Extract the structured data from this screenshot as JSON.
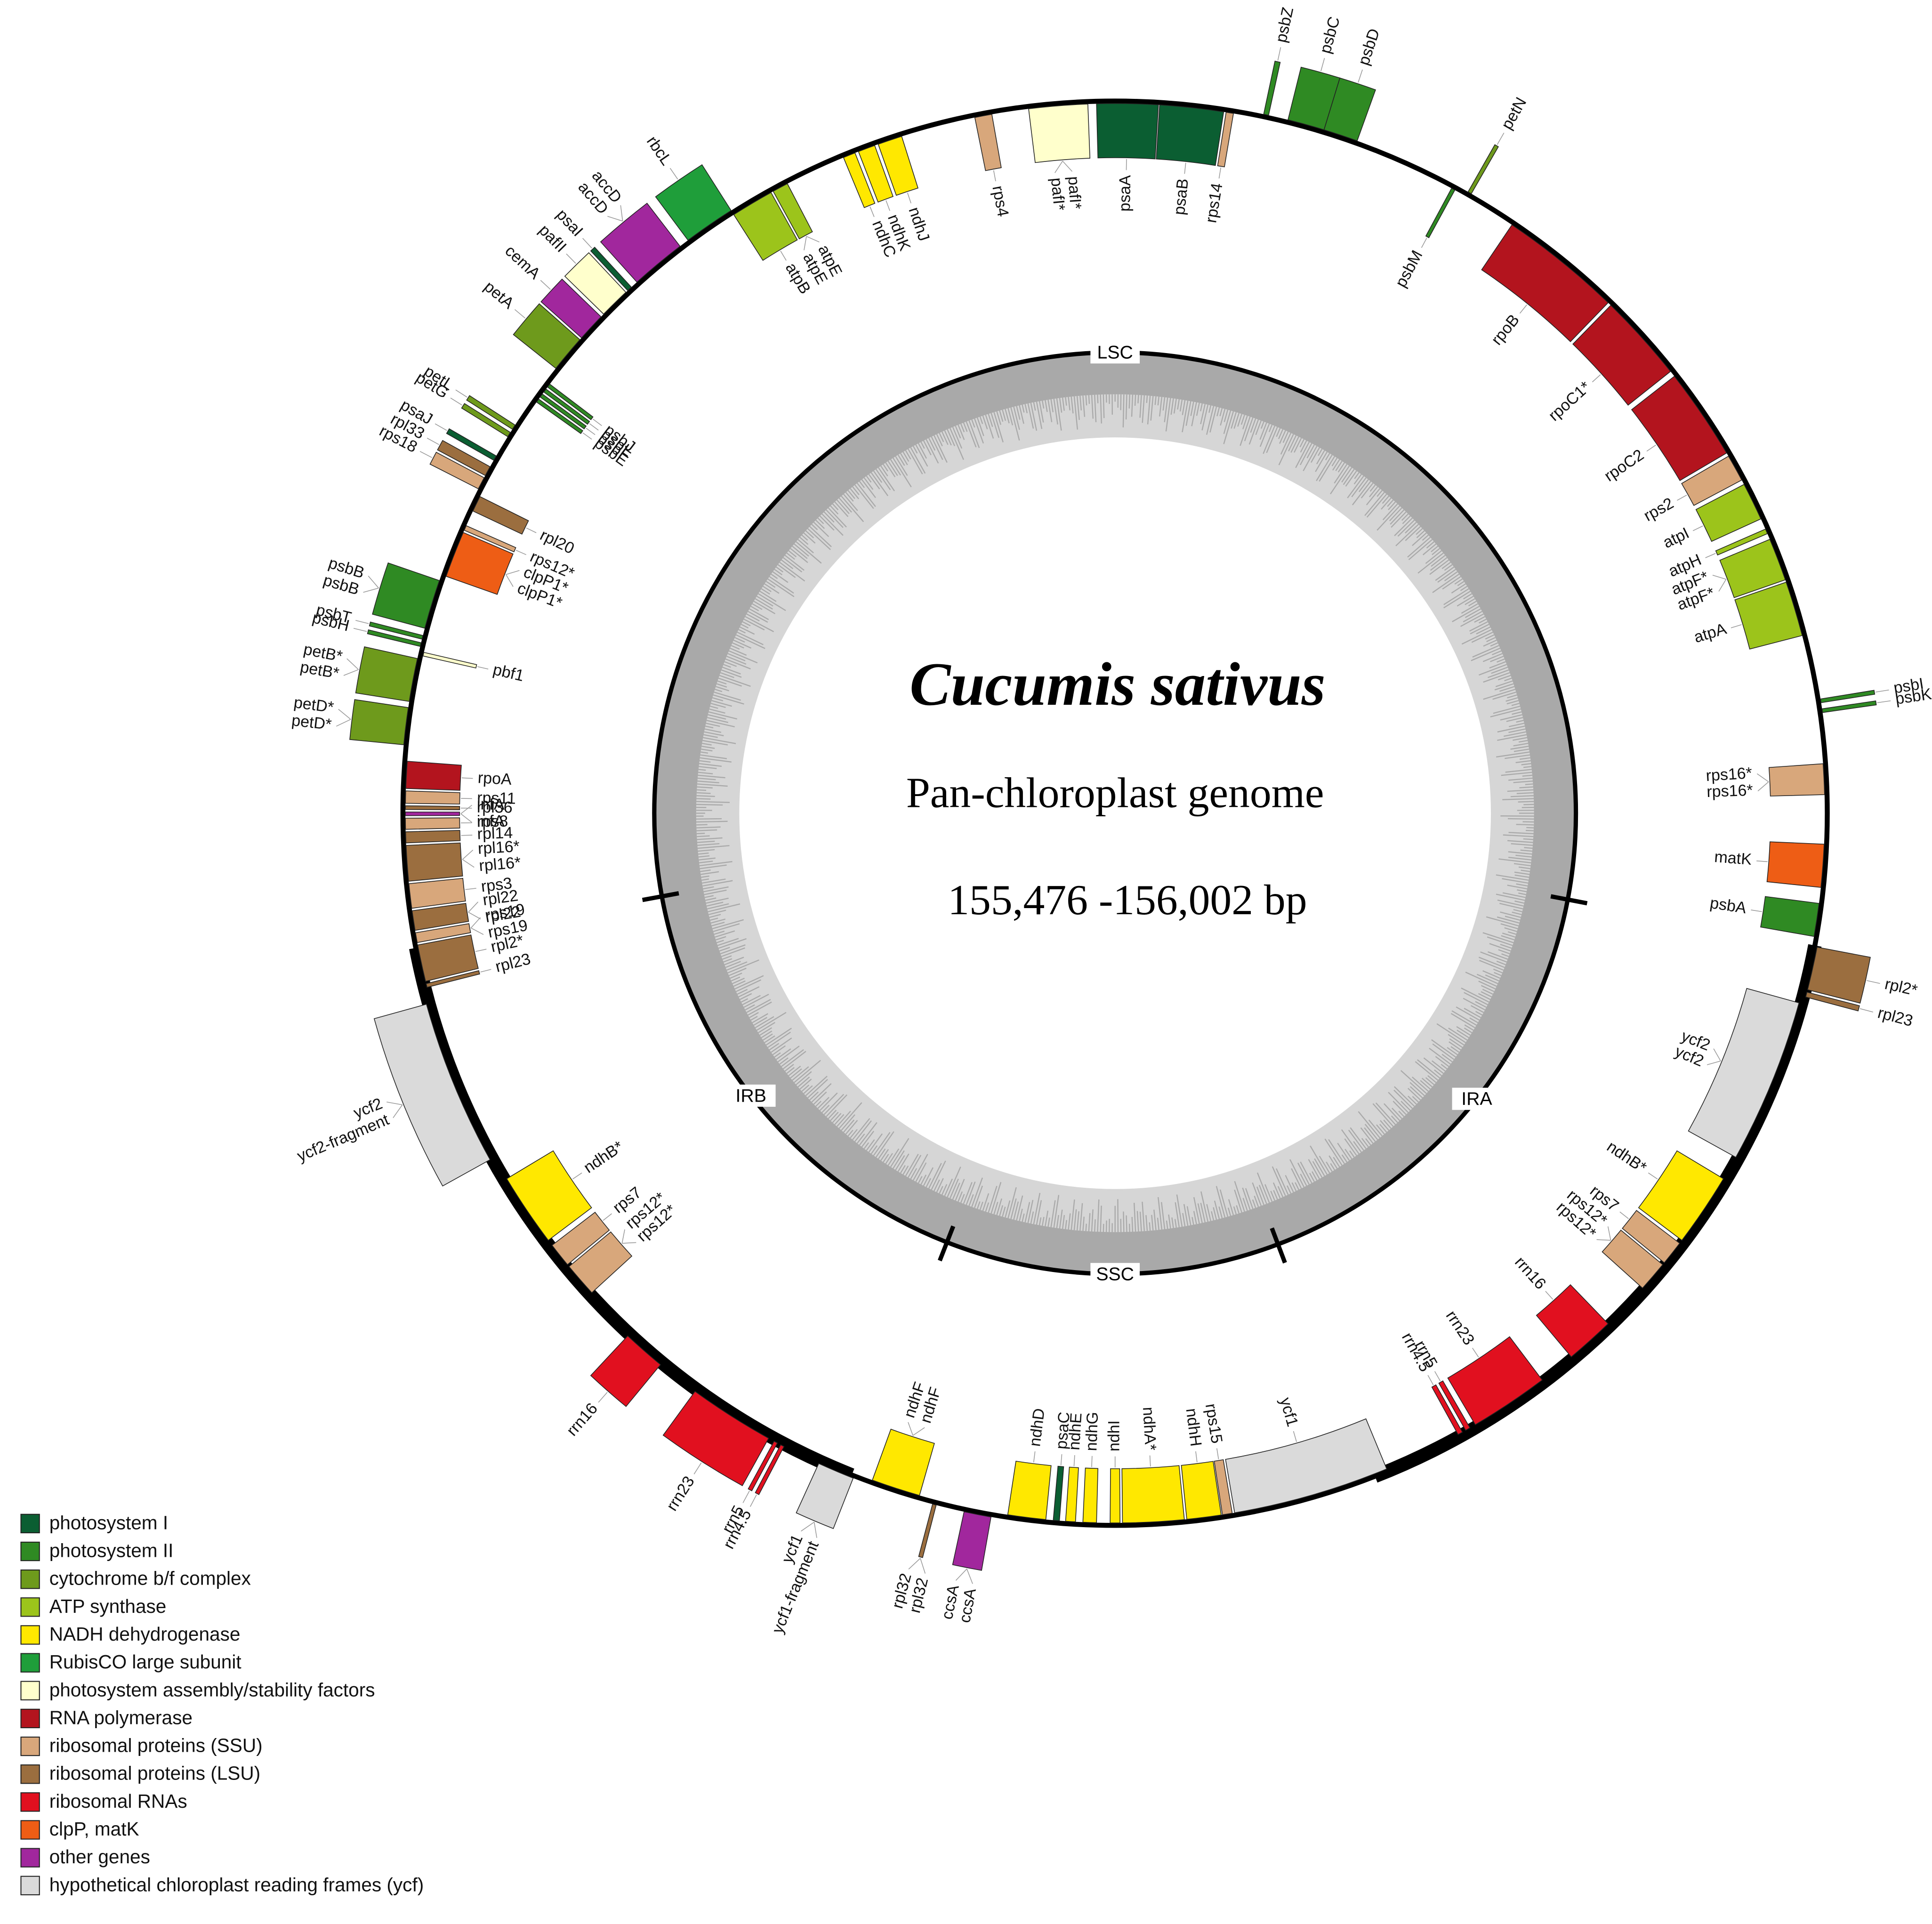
{
  "title": "Cucumis sativus",
  "subtitle": "Pan-chloroplast genome",
  "size": "155,476 -156,002 bp",
  "regions": [
    "LSC",
    "IRA",
    "SSC",
    "IRB"
  ],
  "legend": [
    {
      "label": "photosystem I",
      "color": "#0b5e32"
    },
    {
      "label": "photosystem II",
      "color": "#2f8a23"
    },
    {
      "label": "cytochrome b/f complex",
      "color": "#6e9a1c"
    },
    {
      "label": "ATP synthase",
      "color": "#9cc41b"
    },
    {
      "label": "NADH dehydrogenase",
      "color": "#ffe800"
    },
    {
      "label": "RubisCO large subunit",
      "color": "#1f9e3a"
    },
    {
      "label": "photosystem assembly/stability factors",
      "color": "#ffffcc"
    },
    {
      "label": "RNA polymerase",
      "color": "#b3141e"
    },
    {
      "label": "ribosomal proteins (SSU)",
      "color": "#d8a77b"
    },
    {
      "label": "ribosomal proteins (LSU)",
      "color": "#9b6e3f"
    },
    {
      "label": "ribosomal RNAs",
      "color": "#e1101f"
    },
    {
      "label": "clpP, matK",
      "color": "#ee5d15"
    },
    {
      "label": "other genes",
      "color": "#a1279d"
    },
    {
      "label": "hypothetical chloroplast reading frames (ycf)",
      "color": "#dadada"
    }
  ],
  "genes": [
    {
      "labels": [
        "psbZ"
      ],
      "color": "#2f8a23"
    },
    {
      "labels": [
        "psbC"
      ],
      "color": "#2f8a23"
    },
    {
      "labels": [
        "psbD"
      ],
      "color": "#2f8a23"
    },
    {
      "labels": [
        "psbM"
      ],
      "color": "#2f8a23"
    },
    {
      "labels": [
        "petN"
      ],
      "color": "#6e9a1c"
    },
    {
      "labels": [
        "rpoB"
      ],
      "color": "#b3141e"
    },
    {
      "labels": [
        "rpoC1*"
      ],
      "color": "#b3141e"
    },
    {
      "labels": [
        "rpoC2"
      ],
      "color": "#b3141e"
    },
    {
      "labels": [
        "rps2"
      ],
      "color": "#d8a77b"
    },
    {
      "labels": [
        "atpI"
      ],
      "color": "#9cc41b"
    },
    {
      "labels": [
        "atpH"
      ],
      "color": "#9cc41b"
    },
    {
      "labels": [
        "atpF*",
        "atpF*"
      ],
      "color": "#9cc41b"
    },
    {
      "labels": [
        "atpA"
      ],
      "color": "#9cc41b"
    },
    {
      "labels": [
        "psbI"
      ],
      "color": "#2f8a23"
    },
    {
      "labels": [
        "psbK"
      ],
      "color": "#2f8a23"
    },
    {
      "labels": [
        "rps16*",
        "rps16*"
      ],
      "color": "#d8a77b"
    },
    {
      "labels": [
        "matK"
      ],
      "color": "#ee5d15"
    },
    {
      "labels": [
        "psbA"
      ],
      "color": "#2f8a23"
    },
    {
      "labels": [
        "rpl2*"
      ],
      "color": "#9b6e3f"
    },
    {
      "labels": [
        "rpl23"
      ],
      "color": "#9b6e3f"
    },
    {
      "labels": [
        "ycf2",
        "ycf2"
      ],
      "color": "#dadada"
    },
    {
      "labels": [
        "ndhB*"
      ],
      "color": "#ffe800"
    },
    {
      "labels": [
        "rps7"
      ],
      "color": "#d8a77b"
    },
    {
      "labels": [
        "rps12*",
        "rps12*"
      ],
      "color": "#d8a77b"
    },
    {
      "labels": [
        "rrn16"
      ],
      "color": "#e1101f"
    },
    {
      "labels": [
        "rrn23"
      ],
      "color": "#e1101f"
    },
    {
      "labels": [
        "rrn5"
      ],
      "color": "#e1101f"
    },
    {
      "labels": [
        "rrn4.5"
      ],
      "color": "#e1101f"
    },
    {
      "labels": [
        "ycf1"
      ],
      "color": "#dadada"
    },
    {
      "labels": [
        "rps15"
      ],
      "color": "#d8a77b"
    },
    {
      "labels": [
        "ndhH"
      ],
      "color": "#ffe800"
    },
    {
      "labels": [
        "ndhA*"
      ],
      "color": "#ffe800"
    },
    {
      "labels": [
        "ndhI"
      ],
      "color": "#ffe800"
    },
    {
      "labels": [
        "ndhG"
      ],
      "color": "#ffe800"
    },
    {
      "labels": [
        "ndhE"
      ],
      "color": "#ffe800"
    },
    {
      "labels": [
        "psaC"
      ],
      "color": "#0b5e32"
    },
    {
      "labels": [
        "ndhD"
      ],
      "color": "#ffe800"
    },
    {
      "labels": [
        "ccsA",
        "ccsA"
      ],
      "color": "#a1279d"
    },
    {
      "labels": [
        "rpl32",
        "rpl32"
      ],
      "color": "#9b6e3f"
    },
    {
      "labels": [
        "ndhF",
        "ndhF"
      ],
      "color": "#ffe800"
    },
    {
      "labels": [
        "ycf1-fragment",
        "ycf1"
      ],
      "color": "#dadada"
    },
    {
      "labels": [
        "rrn4.5"
      ],
      "color": "#e1101f"
    },
    {
      "labels": [
        "rrn5"
      ],
      "color": "#e1101f"
    },
    {
      "labels": [
        "rrn23"
      ],
      "color": "#e1101f"
    },
    {
      "labels": [
        "rrn16"
      ],
      "color": "#e1101f"
    },
    {
      "labels": [
        "rps12*",
        "rps12*"
      ],
      "color": "#d8a77b"
    },
    {
      "labels": [
        "rps7"
      ],
      "color": "#d8a77b"
    },
    {
      "labels": [
        "ndhB*"
      ],
      "color": "#ffe800"
    },
    {
      "labels": [
        "ycf2-fragment",
        "ycf2"
      ],
      "color": "#dadada"
    },
    {
      "labels": [
        "rpl23"
      ],
      "color": "#9b6e3f"
    },
    {
      "labels": [
        "rpl2*"
      ],
      "color": "#9b6e3f"
    },
    {
      "labels": [
        "rps19",
        "rps19"
      ],
      "color": "#d8a77b"
    },
    {
      "labels": [
        "rpl22",
        "rpl22"
      ],
      "color": "#9b6e3f"
    },
    {
      "labels": [
        "rps3"
      ],
      "color": "#d8a77b"
    },
    {
      "labels": [
        "rpl16*",
        "rpl16*"
      ],
      "color": "#9b6e3f"
    },
    {
      "labels": [
        "rpl14"
      ],
      "color": "#9b6e3f"
    },
    {
      "labels": [
        "rps8"
      ],
      "color": "#d8a77b"
    },
    {
      "labels": [
        "infA",
        "infA"
      ],
      "color": "#a1279d"
    },
    {
      "labels": [
        "rpl36"
      ],
      "color": "#9b6e3f"
    },
    {
      "labels": [
        "rps11"
      ],
      "color": "#d8a77b"
    },
    {
      "labels": [
        "rpoA"
      ],
      "color": "#b3141e"
    },
    {
      "labels": [
        "petD*",
        "petD*"
      ],
      "color": "#6e9a1c"
    },
    {
      "labels": [
        "petB*",
        "petB*"
      ],
      "color": "#6e9a1c"
    },
    {
      "labels": [
        "pbf1"
      ],
      "color": "#ffffcc"
    },
    {
      "labels": [
        "psbH"
      ],
      "color": "#2f8a23"
    },
    {
      "labels": [
        "psbT"
      ],
      "color": "#2f8a23"
    },
    {
      "labels": [
        "psbB",
        "psbB"
      ],
      "color": "#2f8a23"
    },
    {
      "labels": [
        "clpP1*",
        "clpP1*"
      ],
      "color": "#ee5d15"
    },
    {
      "labels": [
        "rps12*"
      ],
      "color": "#d8a77b"
    },
    {
      "labels": [
        "rpl20"
      ],
      "color": "#9b6e3f"
    },
    {
      "labels": [
        "rps18"
      ],
      "color": "#d8a77b"
    },
    {
      "labels": [
        "rpl33"
      ],
      "color": "#9b6e3f"
    },
    {
      "labels": [
        "psaJ"
      ],
      "color": "#0b5e32"
    },
    {
      "labels": [
        "petG"
      ],
      "color": "#6e9a1c"
    },
    {
      "labels": [
        "petL"
      ],
      "color": "#6e9a1c"
    },
    {
      "labels": [
        "psbE"
      ],
      "color": "#2f8a23"
    },
    {
      "labels": [
        "psbF"
      ],
      "color": "#2f8a23"
    },
    {
      "labels": [
        "psbL"
      ],
      "color": "#2f8a23"
    },
    {
      "labels": [
        "psbJ"
      ],
      "color": "#2f8a23"
    },
    {
      "labels": [
        "petA"
      ],
      "color": "#6e9a1c"
    },
    {
      "labels": [
        "cemA"
      ],
      "color": "#a1279d"
    },
    {
      "labels": [
        "pafII"
      ],
      "color": "#ffffcc"
    },
    {
      "labels": [
        "psaI"
      ],
      "color": "#0b5e32"
    },
    {
      "labels": [
        "accD",
        "accD"
      ],
      "color": "#a1279d"
    },
    {
      "labels": [
        "rbcL"
      ],
      "color": "#1f9e3a"
    },
    {
      "labels": [
        "atpB"
      ],
      "color": "#9cc41b"
    },
    {
      "labels": [
        "atpE",
        "atpE"
      ],
      "color": "#9cc41b"
    },
    {
      "labels": [
        "ndhC"
      ],
      "color": "#ffe800"
    },
    {
      "labels": [
        "ndhK"
      ],
      "color": "#ffe800"
    },
    {
      "labels": [
        "ndhJ"
      ],
      "color": "#ffe800"
    },
    {
      "labels": [
        "rps4"
      ],
      "color": "#d8a77b"
    },
    {
      "labels": [
        "pafI*",
        "pafI*"
      ],
      "color": "#ffffcc"
    },
    {
      "labels": [
        "psaA"
      ],
      "color": "#0b5e32"
    },
    {
      "labels": [
        "psaB"
      ],
      "color": "#0b5e32"
    },
    {
      "labels": [
        "rps14"
      ],
      "color": "#d8a77b"
    }
  ]
}
